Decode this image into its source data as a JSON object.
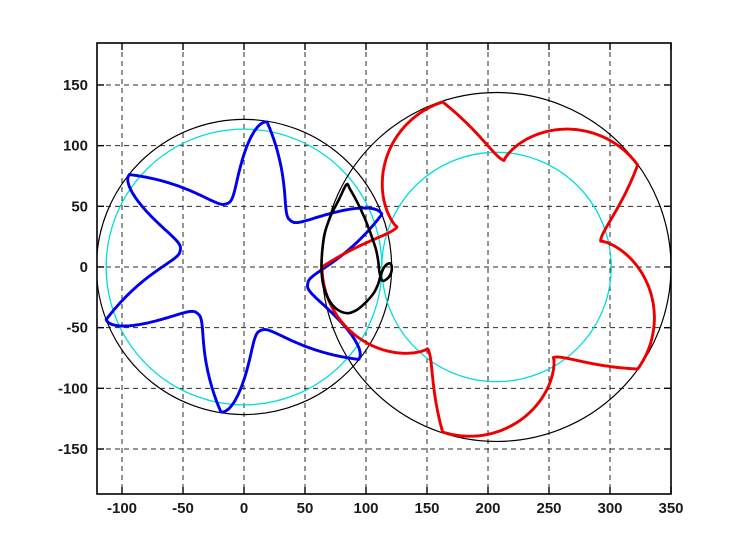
{
  "figure": {
    "background": "#ffffff",
    "description": "MATLAB-style plot of two meshing cycloidal gear rotors with pitch and addendum circles and contact path"
  },
  "chart_data": {
    "type": "line",
    "title": "",
    "xlabel": "",
    "ylabel": "",
    "axes": {
      "xlim": [
        -120.5,
        350
      ],
      "ylim": [
        -187.1,
        184.6
      ],
      "xticks": [
        -100,
        -50,
        0,
        50,
        100,
        150,
        200,
        250,
        300,
        350
      ],
      "yticks": [
        -150,
        -100,
        -50,
        0,
        50,
        100,
        150
      ],
      "grid": true,
      "grid_line_style": "dashed",
      "grid_color": "#2b2b2b",
      "box": true,
      "tick_direction": "in",
      "axis_color": "#000000",
      "tick_label_color": "#1a1a1a"
    },
    "series": [
      {
        "name": "left-gear-addendum-circle",
        "type": "circle",
        "center": [
          0,
          0
        ],
        "radius": 121,
        "color": "#000000",
        "width": 1.2
      },
      {
        "name": "left-gear-pitch-circle",
        "type": "circle",
        "center": [
          0,
          0
        ],
        "radius": 113,
        "color": "#00dddd",
        "width": 1.3
      },
      {
        "name": "right-gear-addendum-circle",
        "type": "circle",
        "center": [
          207,
          0
        ],
        "radius": 143,
        "color": "#000000",
        "width": 1.2
      },
      {
        "name": "right-gear-pitch-circle",
        "type": "circle",
        "center": [
          207,
          0
        ],
        "radius": 94,
        "color": "#00dddd",
        "width": 1.3
      },
      {
        "name": "left-gear-tooth-profile",
        "type": "gear-profile",
        "color": "#0000ee",
        "width": 2.9,
        "center": [
          0,
          0
        ],
        "teeth": 6,
        "tip_angle_deg": 81,
        "tip_radius": 121,
        "valley_radius": 54,
        "fall_span_deg": 26,
        "fall_exp": 3.5,
        "rise_exp": 1.7
      },
      {
        "name": "right-gear-tooth-profile",
        "type": "gear-profile",
        "color": "#ee0000",
        "width": 2.9,
        "center": [
          207,
          0
        ],
        "teeth": 5,
        "tip_angle_deg": 36,
        "tip_radius": 143,
        "valley_radius": 88,
        "fall_span_deg": 50,
        "fall_exp": 0.8,
        "rise_exp": 1.5
      },
      {
        "name": "contact-path",
        "type": "polyline",
        "closed": true,
        "smooth": true,
        "color": "#000000",
        "width": 2.6,
        "points": [
          [
            84,
            68
          ],
          [
            78,
            56
          ],
          [
            71,
            42
          ],
          [
            66,
            27
          ],
          [
            64,
            12
          ],
          [
            63.5,
            -2
          ],
          [
            65,
            -15
          ],
          [
            69,
            -26
          ],
          [
            74,
            -33
          ],
          [
            80,
            -37
          ],
          [
            86,
            -38
          ],
          [
            93,
            -35
          ],
          [
            100,
            -29
          ],
          [
            106,
            -22
          ],
          [
            110,
            -14
          ],
          [
            112,
            -7
          ],
          [
            115,
            0
          ],
          [
            119,
            3
          ],
          [
            121,
            1
          ],
          [
            120.5,
            -5
          ],
          [
            117,
            -10
          ],
          [
            113,
            -11
          ],
          [
            111,
            -4
          ],
          [
            110,
            5
          ],
          [
            108,
            15
          ],
          [
            104,
            27
          ],
          [
            99,
            40
          ],
          [
            93,
            53
          ],
          [
            87,
            64
          ]
        ]
      }
    ]
  }
}
